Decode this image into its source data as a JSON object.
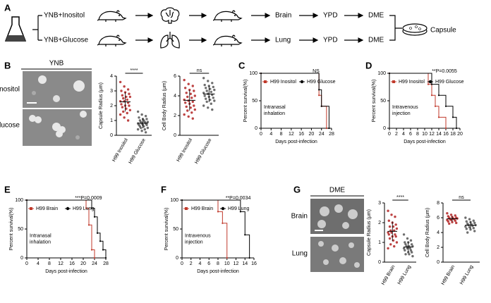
{
  "figure": {
    "panels": [
      "A",
      "B",
      "C",
      "D",
      "E",
      "F",
      "G"
    ],
    "media": [
      "YNB+Inositol",
      "YNB+Glucose"
    ],
    "row1": [
      "Brain",
      "YPD",
      "DME"
    ],
    "row2": [
      "Lung",
      "YPD",
      "DME"
    ],
    "capsule": "Capsule",
    "b_header": "YNB",
    "b_rows": [
      "Inositol",
      "Glucose"
    ],
    "g_header": "DME",
    "g_rows": [
      "Brain",
      "Lung"
    ]
  },
  "chart_data": [
    {
      "type": "strip",
      "ylabel": "Capsule Radius (μm)",
      "categories": [
        "H99 Inositol",
        "H99 Glucose"
      ],
      "colors": [
        "#b22222",
        "#555555"
      ],
      "annotation": "****",
      "ylim": [
        0,
        4
      ],
      "yticks": [
        0,
        1,
        2,
        3,
        4
      ],
      "values": [
        [
          3.6,
          3.3,
          3.1,
          3.0,
          2.9,
          2.8,
          2.7,
          2.6,
          2.6,
          2.5,
          2.4,
          2.3,
          2.3,
          2.2,
          2.1,
          2.0,
          2.0,
          1.9,
          1.8,
          1.7,
          1.6,
          1.5,
          1.4,
          1.2,
          1.0
        ],
        [
          1.6,
          1.4,
          1.3,
          1.2,
          1.1,
          1.1,
          1.0,
          1.0,
          0.9,
          0.9,
          0.9,
          0.8,
          0.8,
          0.8,
          0.7,
          0.7,
          0.7,
          0.6,
          0.6,
          0.5,
          0.5,
          0.4,
          0.4,
          0.3,
          0.2
        ]
      ]
    },
    {
      "type": "strip",
      "ylabel": "Cell Body Radius (μm)",
      "categories": [
        "H99 Inositol",
        "H99 Glucose"
      ],
      "colors": [
        "#b22222",
        "#555555"
      ],
      "annotation": "ns",
      "ylim": [
        0,
        6
      ],
      "yticks": [
        0,
        2,
        4,
        6
      ],
      "values": [
        [
          5.6,
          5.2,
          5.0,
          4.8,
          4.6,
          4.5,
          4.3,
          4.2,
          4.0,
          3.9,
          3.8,
          3.6,
          3.5,
          3.4,
          3.3,
          3.2,
          3.0,
          2.9,
          2.8,
          2.6,
          2.5,
          2.3,
          2.1,
          1.9,
          1.7
        ],
        [
          5.8,
          5.5,
          5.3,
          5.1,
          5.0,
          4.9,
          4.8,
          4.7,
          4.6,
          4.5,
          4.4,
          4.3,
          4.2,
          4.1,
          4.0,
          3.9,
          3.8,
          3.7,
          3.6,
          3.5,
          3.4,
          3.2,
          3.0,
          2.8,
          2.6
        ]
      ]
    },
    {
      "type": "survival",
      "ylabel": "Percent survival(%)",
      "xlabel": "Days post-infection",
      "annotation": [
        "Intranasal",
        "inhalation"
      ],
      "pvalue": "NS",
      "xlim": [
        0,
        28
      ],
      "xticks": [
        0,
        4,
        8,
        12,
        16,
        20,
        24,
        28
      ],
      "ylim": [
        0,
        100
      ],
      "yticks": [
        0,
        50,
        100
      ],
      "series": [
        {
          "name": "H99 Inositol",
          "color": "#c0392b",
          "marker": "square",
          "x": [
            0,
            23,
            24,
            26
          ],
          "values": [
            100,
            60,
            40,
            0
          ]
        },
        {
          "name": "H99 Glucose",
          "color": "#000000",
          "marker": "circle",
          "x": [
            0,
            23,
            24,
            27
          ],
          "values": [
            100,
            70,
            40,
            0
          ]
        }
      ]
    },
    {
      "type": "survival",
      "ylabel": "Percent survival(%)",
      "xlabel": "Days post-infection",
      "annotation": [
        "Intravenous",
        "injection"
      ],
      "pvalue": "**P=0.0055",
      "xlim": [
        0,
        20
      ],
      "xticks": [
        0,
        2,
        4,
        6,
        8,
        10,
        12,
        14,
        16,
        18,
        20
      ],
      "ylim": [
        0,
        100
      ],
      "yticks": [
        0,
        50,
        100
      ],
      "series": [
        {
          "name": "H99 Inositol",
          "color": "#c0392b",
          "marker": "square",
          "x": [
            0,
            11,
            12,
            13,
            14,
            16
          ],
          "values": [
            100,
            80,
            60,
            40,
            20,
            0
          ]
        },
        {
          "name": "H99 Glucose",
          "color": "#000000",
          "marker": "circle",
          "x": [
            0,
            12,
            14,
            16,
            18,
            19
          ],
          "values": [
            100,
            80,
            60,
            40,
            20,
            0
          ]
        }
      ]
    },
    {
      "type": "survival",
      "ylabel": "Percent survival(%)",
      "xlabel": "Days post-infection",
      "annotation": [
        "Intranasal",
        "inhalation"
      ],
      "pvalue": "***P=0.0009",
      "xlim": [
        0,
        28
      ],
      "xticks": [
        0,
        4,
        8,
        12,
        16,
        20,
        24,
        28
      ],
      "ylim": [
        0,
        100
      ],
      "yticks": [
        0,
        50,
        100
      ],
      "series": [
        {
          "name": "H99 Brain",
          "color": "#c0392b",
          "marker": "square",
          "x": [
            0,
            21,
            22,
            23,
            24
          ],
          "values": [
            100,
            86,
            57,
            14,
            0
          ]
        },
        {
          "name": "H99 Lung",
          "color": "#000000",
          "marker": "circle",
          "x": [
            0,
            23,
            24,
            25,
            26,
            27,
            28
          ],
          "values": [
            100,
            86,
            71,
            43,
            29,
            14,
            0
          ]
        }
      ]
    },
    {
      "type": "survival",
      "ylabel": "Percent survival(%)",
      "xlabel": "Days post-infection",
      "annotation": [
        "Intravenous",
        "injection"
      ],
      "pvalue": "**P=0.0034",
      "xlim": [
        0,
        16
      ],
      "xticks": [
        0,
        2,
        4,
        6,
        8,
        10,
        12,
        14,
        16
      ],
      "ylim": [
        0,
        100
      ],
      "yticks": [
        0,
        50,
        100
      ],
      "series": [
        {
          "name": "H99 Brain",
          "color": "#c0392b",
          "marker": "square",
          "x": [
            0,
            8,
            9,
            10
          ],
          "values": [
            100,
            80,
            60,
            0
          ]
        },
        {
          "name": "H99 Lung",
          "color": "#000000",
          "marker": "circle",
          "x": [
            0,
            13,
            14,
            15
          ],
          "values": [
            100,
            80,
            40,
            0
          ]
        }
      ]
    },
    {
      "type": "strip",
      "ylabel": "Capsule Radius (μm)",
      "categories": [
        "H99 Brain",
        "H99 Lung"
      ],
      "colors": [
        "#b22222",
        "#555555"
      ],
      "annotation": "****",
      "ylim": [
        0,
        3
      ],
      "yticks": [
        0,
        1,
        2,
        3
      ],
      "values": [
        [
          2.6,
          2.4,
          2.3,
          2.1,
          2.0,
          1.9,
          1.8,
          1.8,
          1.7,
          1.6,
          1.6,
          1.5,
          1.5,
          1.4,
          1.4,
          1.3,
          1.3,
          1.2,
          1.1,
          1.0,
          0.9,
          0.8,
          0.7
        ],
        [
          1.4,
          1.2,
          1.1,
          1.0,
          1.0,
          0.9,
          0.9,
          0.8,
          0.8,
          0.8,
          0.7,
          0.7,
          0.7,
          0.6,
          0.6,
          0.5,
          0.5,
          0.4,
          0.4,
          0.3
        ]
      ]
    },
    {
      "type": "strip",
      "ylabel": "Cell Body Radius (μm)",
      "categories": [
        "H99 Brain",
        "H99 Lung"
      ],
      "colors": [
        "#b22222",
        "#555555"
      ],
      "annotation": "ns",
      "ylim": [
        0,
        8
      ],
      "yticks": [
        0,
        2,
        4,
        6,
        8
      ],
      "values": [
        [
          6.6,
          6.4,
          6.3,
          6.2,
          6.1,
          6.0,
          6.0,
          5.9,
          5.9,
          5.8,
          5.8,
          5.7,
          5.7,
          5.6,
          5.5,
          5.4,
          5.3,
          5.2
        ],
        [
          6.0,
          5.8,
          5.6,
          5.5,
          5.4,
          5.3,
          5.2,
          5.1,
          5.0,
          5.0,
          4.9,
          4.8,
          4.7,
          4.6,
          4.5,
          4.4,
          4.2,
          4.0
        ]
      ]
    }
  ]
}
